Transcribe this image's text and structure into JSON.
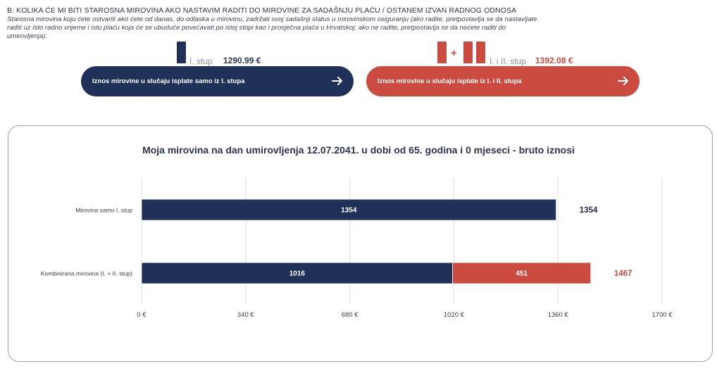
{
  "header": {
    "title": "B: KOLIKA ĆE MI BITI STAROSNA MIROVINA AKO NASTAVIM RADITI DO MIROVINE ZA SADAŠNJU PLAĆU / OSTANEM IZVAN RADNOG ODNOSA",
    "description": "Starosna mirovina koju ćete ostvariti ako ćete od danas, do odlaska u mirovinu, zadržati svoj sadašnji status u mirovinskom osiguranju (ako radite, pretpostavlja se da nastavljate raditi uz isto radno vrijeme i istu plaću koja će se ubuduće povećavati po istoj stopi kao i prosječna plaća u Hrvatskoj; ako ne radite, pretpostavlja se da nećete raditi do umirovljenja)."
  },
  "option1": {
    "label": "I. stup",
    "amount": "1290.99 €",
    "button_label": "Iznos mirovine u slučaju isplate samo iz I. stupa",
    "color": "#1f3158"
  },
  "option2": {
    "plus": "+",
    "label": "I. i II. stup",
    "amount": "1392.08 €",
    "button_label": "Iznos mirovine u slučaju isplate iz I. i II. stupa",
    "color": "#cc4b40"
  },
  "chart_data": {
    "type": "bar",
    "orientation": "horizontal",
    "stacked": true,
    "title": "Moja mirovina na dan umirovljenja 12.07.2041. u dobi od 65. godina i 0 mjeseci - bruto iznosi",
    "categories": [
      "Mirovina samo I. stup",
      "Kombinirana mirovina (I. + II. stup)"
    ],
    "series": [
      {
        "color": "#1f3158",
        "values": [
          1354,
          1016
        ]
      },
      {
        "color": "#cc4b40",
        "values": [
          0,
          451
        ]
      }
    ],
    "totals": [
      {
        "label": "1354",
        "color": "#1f3158"
      },
      {
        "label": "1467",
        "color": "#cc4b40"
      }
    ],
    "xlim": [
      0,
      1700
    ],
    "xticks": [
      "0 €",
      "340 €",
      "680 €",
      "1020 €",
      "1360 €",
      "1700 €"
    ],
    "xtick_values": [
      0,
      340,
      680,
      1020,
      1360,
      1700
    ],
    "grid": true
  }
}
